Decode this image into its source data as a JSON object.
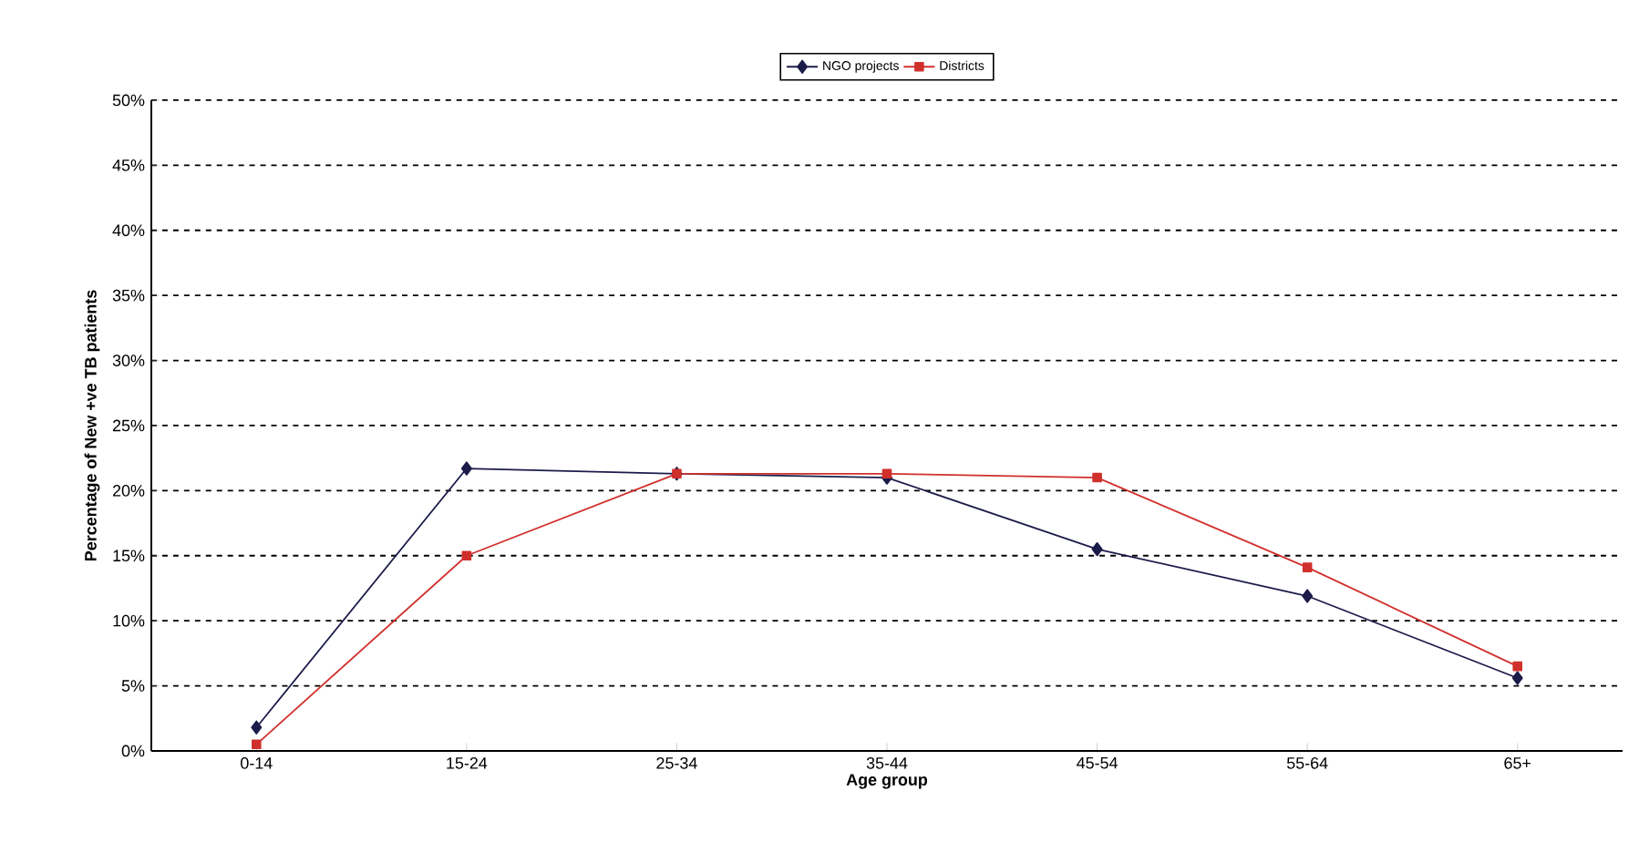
{
  "chart_data": {
    "type": "line",
    "xlabel": "Age group",
    "ylabel": "Percentage of New +ve TB patients",
    "categories": [
      "0-14",
      "15-24",
      "25-34",
      "35-44",
      "45-54",
      "55-64",
      "65+"
    ],
    "series": [
      {
        "name": "NGO projects",
        "color": "#1c1c4a",
        "marker": "diamond",
        "values": [
          1.8,
          21.7,
          21.3,
          21.0,
          15.5,
          11.9,
          5.6
        ]
      },
      {
        "name": "Districts",
        "color": "#d0302c",
        "marker": "square",
        "values": [
          0.5,
          15.0,
          21.3,
          21.3,
          21.0,
          14.1,
          6.5
        ]
      }
    ],
    "ylim": [
      0,
      50
    ],
    "yticks": [
      {
        "value": 0,
        "label": "0%"
      },
      {
        "value": 5,
        "label": "5%"
      },
      {
        "value": 10,
        "label": "10%"
      },
      {
        "value": 15,
        "label": "15%"
      },
      {
        "value": 20,
        "label": "20%"
      },
      {
        "value": 25,
        "label": "25%"
      },
      {
        "value": 30,
        "label": "30%"
      },
      {
        "value": 35,
        "label": "35%"
      },
      {
        "value": 40,
        "label": "40%"
      },
      {
        "value": 45,
        "label": "45%"
      },
      {
        "value": 50,
        "label": "50%"
      }
    ],
    "grid": "y",
    "legend": "top",
    "line_style": "solid"
  }
}
